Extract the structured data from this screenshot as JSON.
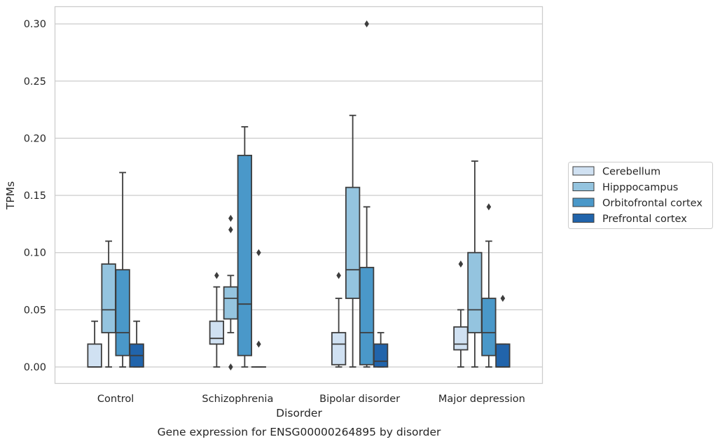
{
  "chart_data": {
    "type": "box",
    "title": "",
    "caption": "Gene expression for ENSG00000264895 by disorder",
    "xlabel": "Disorder",
    "ylabel": "TPMs",
    "ylim": [
      -0.015,
      0.315
    ],
    "yticks": [
      0.0,
      0.05,
      0.1,
      0.15,
      0.2,
      0.25,
      0.3
    ],
    "ytick_labels": [
      "0.00",
      "0.05",
      "0.10",
      "0.15",
      "0.20",
      "0.25",
      "0.30"
    ],
    "grid": true,
    "legend_position": "right",
    "categories": [
      "Control",
      "Schizophrenia",
      "Bipolar disorder",
      "Major depression"
    ],
    "series": [
      {
        "name": "Cerebellum",
        "color": "#d0e1f2",
        "boxes": [
          {
            "whislo": 0.0,
            "q1": 0.0,
            "med": 0.0,
            "q3": 0.02,
            "whishi": 0.04,
            "fliers": []
          },
          {
            "whislo": 0.0,
            "q1": 0.02,
            "med": 0.025,
            "q3": 0.04,
            "whishi": 0.07,
            "fliers": [
              0.08
            ]
          },
          {
            "whislo": 0.0,
            "q1": 0.002,
            "med": 0.02,
            "q3": 0.03,
            "whishi": 0.06,
            "fliers": [
              0.08
            ]
          },
          {
            "whislo": 0.0,
            "q1": 0.015,
            "med": 0.02,
            "q3": 0.035,
            "whishi": 0.05,
            "fliers": [
              0.09
            ]
          }
        ]
      },
      {
        "name": "Hipppocampus",
        "color": "#94c4df",
        "boxes": [
          {
            "whislo": 0.0,
            "q1": 0.03,
            "med": 0.05,
            "q3": 0.09,
            "whishi": 0.11,
            "fliers": []
          },
          {
            "whislo": 0.03,
            "q1": 0.042,
            "med": 0.06,
            "q3": 0.07,
            "whishi": 0.08,
            "fliers": [
              0.0,
              0.12,
              0.13
            ]
          },
          {
            "whislo": 0.0,
            "q1": 0.06,
            "med": 0.085,
            "q3": 0.157,
            "whishi": 0.22,
            "fliers": []
          },
          {
            "whislo": 0.0,
            "q1": 0.03,
            "med": 0.05,
            "q3": 0.1,
            "whishi": 0.18,
            "fliers": []
          }
        ]
      },
      {
        "name": "Orbitofrontal cortex",
        "color": "#4a98c9",
        "boxes": [
          {
            "whislo": 0.0,
            "q1": 0.01,
            "med": 0.03,
            "q3": 0.085,
            "whishi": 0.17,
            "fliers": []
          },
          {
            "whislo": 0.0,
            "q1": 0.01,
            "med": 0.055,
            "q3": 0.185,
            "whishi": 0.21,
            "fliers": []
          },
          {
            "whislo": 0.0,
            "q1": 0.002,
            "med": 0.03,
            "q3": 0.087,
            "whishi": 0.14,
            "fliers": [
              0.3
            ]
          },
          {
            "whislo": 0.0,
            "q1": 0.01,
            "med": 0.03,
            "q3": 0.06,
            "whishi": 0.11,
            "fliers": [
              0.14
            ]
          }
        ]
      },
      {
        "name": "Prefrontal cortex",
        "color": "#2164ab",
        "boxes": [
          {
            "whislo": 0.0,
            "q1": 0.0,
            "med": 0.01,
            "q3": 0.02,
            "whishi": 0.04,
            "fliers": []
          },
          {
            "whislo": 0.0,
            "q1": 0.0,
            "med": 0.0,
            "q3": 0.0,
            "whishi": 0.0,
            "fliers": [
              0.02,
              0.1
            ]
          },
          {
            "whislo": 0.0,
            "q1": 0.0,
            "med": 0.005,
            "q3": 0.02,
            "whishi": 0.03,
            "fliers": []
          },
          {
            "whislo": 0.0,
            "q1": 0.0,
            "med": 0.0,
            "q3": 0.02,
            "whishi": 0.02,
            "fliers": [
              0.06
            ]
          }
        ]
      }
    ]
  }
}
